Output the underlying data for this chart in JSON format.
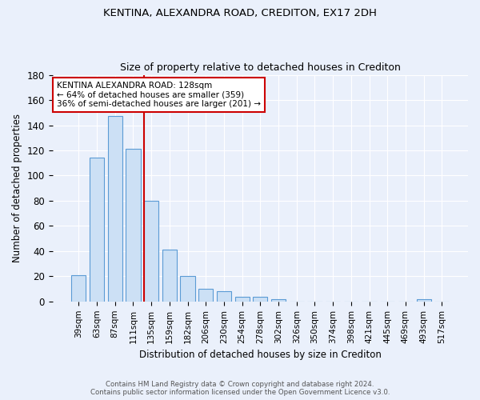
{
  "title": "KENTINA, ALEXANDRA ROAD, CREDITON, EX17 2DH",
  "subtitle": "Size of property relative to detached houses in Crediton",
  "xlabel": "Distribution of detached houses by size in Crediton",
  "ylabel": "Number of detached properties",
  "footnote1": "Contains HM Land Registry data © Crown copyright and database right 2024.",
  "footnote2": "Contains public sector information licensed under the Open Government Licence v3.0.",
  "categories": [
    "39sqm",
    "63sqm",
    "87sqm",
    "111sqm",
    "135sqm",
    "159sqm",
    "182sqm",
    "206sqm",
    "230sqm",
    "254sqm",
    "278sqm",
    "302sqm",
    "326sqm",
    "350sqm",
    "374sqm",
    "398sqm",
    "421sqm",
    "445sqm",
    "469sqm",
    "493sqm",
    "517sqm"
  ],
  "values": [
    21,
    114,
    147,
    121,
    80,
    41,
    20,
    10,
    8,
    4,
    4,
    2,
    0,
    0,
    0,
    0,
    0,
    0,
    0,
    2,
    0
  ],
  "bar_color": "#cce0f5",
  "bar_edge_color": "#5b9bd5",
  "background_color": "#eaf0fb",
  "grid_color": "#ffffff",
  "vline_color": "#cc0000",
  "annotation_text": "KENTINA ALEXANDRA ROAD: 128sqm\n← 64% of detached houses are smaller (359)\n36% of semi-detached houses are larger (201) →",
  "annotation_box_color": "#ffffff",
  "annotation_box_edge": "#cc0000",
  "ylim": [
    0,
    180
  ],
  "yticks": [
    0,
    20,
    40,
    60,
    80,
    100,
    120,
    140,
    160,
    180
  ]
}
